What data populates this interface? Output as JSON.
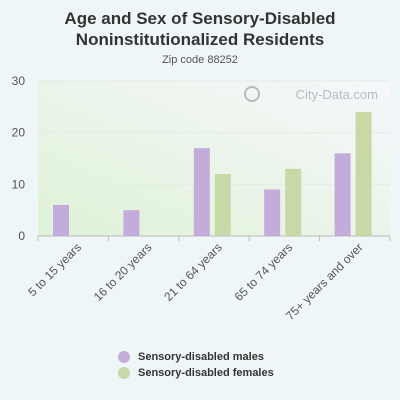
{
  "chart_data": {
    "type": "bar",
    "title": "Age and Sex of Sensory-Disabled Noninstitutionalized Residents",
    "subtitle": "Zip code 88252",
    "categories": [
      "5 to 15 years",
      "16 to 20 years",
      "21 to 64 years",
      "65 to 74 years",
      "75+ years and over"
    ],
    "series": [
      {
        "name": "Sensory-disabled males",
        "values": [
          6,
          5,
          17,
          9,
          16
        ],
        "color": "#c3acd9"
      },
      {
        "name": "Sensory-disabled females",
        "values": [
          0,
          0,
          12,
          13,
          24
        ],
        "color": "#c6d9a6"
      }
    ],
    "yticks": [
      0,
      10,
      20,
      30
    ],
    "ylim": [
      0,
      30
    ],
    "xlabel": "",
    "ylabel": "",
    "grid": true,
    "legend_position": "bottom"
  },
  "watermark": "City-Data.com"
}
